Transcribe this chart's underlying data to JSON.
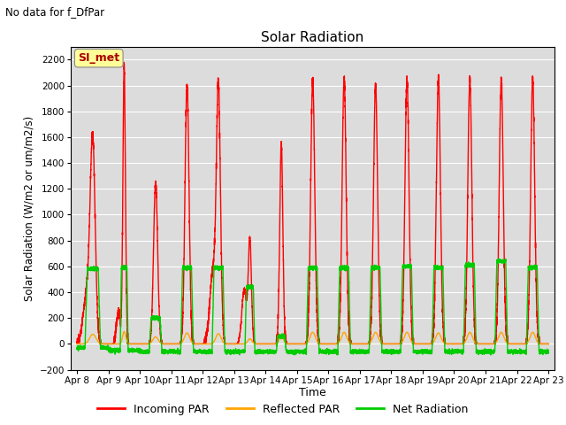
{
  "title": "Solar Radiation",
  "suptitle": "No data for f_DfPar",
  "ylabel": "Solar Radiation (W/m2 or um/m2/s)",
  "xlabel": "Time",
  "ylim": [
    -200,
    2300
  ],
  "yticks": [
    -200,
    0,
    200,
    400,
    600,
    800,
    1000,
    1200,
    1400,
    1600,
    1800,
    2000,
    2200
  ],
  "date_labels": [
    "Apr 8",
    "Apr 9",
    "Apr 10",
    "Apr 11",
    "Apr 12",
    "Apr 13",
    "Apr 14",
    "Apr 15",
    "Apr 16",
    "Apr 17",
    "Apr 18",
    "Apr 19",
    "Apr 20",
    "Apr 21",
    "Apr 22",
    "Apr 23"
  ],
  "legend": [
    {
      "label": "Incoming PAR",
      "color": "#FF0000"
    },
    {
      "label": "Reflected PAR",
      "color": "#FFA500"
    },
    {
      "label": "Net Radiation",
      "color": "#00CC00"
    }
  ],
  "si_met_label": "SI_met",
  "si_met_color": "#AA0000",
  "si_met_bg": "#FFFF99",
  "background_color": "#DCDCDC",
  "figure_bg": "#FFFFFF",
  "n_days": 15,
  "incoming_peaks": [
    1500,
    2150,
    1250,
    2000,
    1950,
    800,
    1550,
    2050,
    2050,
    2000,
    2050,
    2050,
    2050,
    2050,
    2050
  ],
  "incoming_secondary": [
    400,
    260,
    0,
    0,
    550,
    420,
    0,
    0,
    0,
    0,
    0,
    0,
    0,
    0,
    0
  ],
  "reflected_peaks": [
    75,
    95,
    55,
    85,
    80,
    40,
    65,
    90,
    90,
    90,
    90,
    85,
    90,
    90,
    90
  ],
  "net_peaks": [
    580,
    590,
    200,
    590,
    590,
    440,
    60,
    590,
    590,
    590,
    600,
    590,
    610,
    640,
    590
  ],
  "net_negative": [
    -30,
    -50,
    -60,
    -60,
    -60,
    -60,
    -60,
    -60,
    -60,
    -60,
    -60,
    -60,
    -60,
    -60,
    -60
  ],
  "day_widths": [
    0.55,
    0.28,
    0.45,
    0.45,
    0.45,
    0.35,
    0.35,
    0.45,
    0.45,
    0.45,
    0.45,
    0.45,
    0.45,
    0.45,
    0.45
  ],
  "line_width": 1.0,
  "pts_per_day": 500
}
